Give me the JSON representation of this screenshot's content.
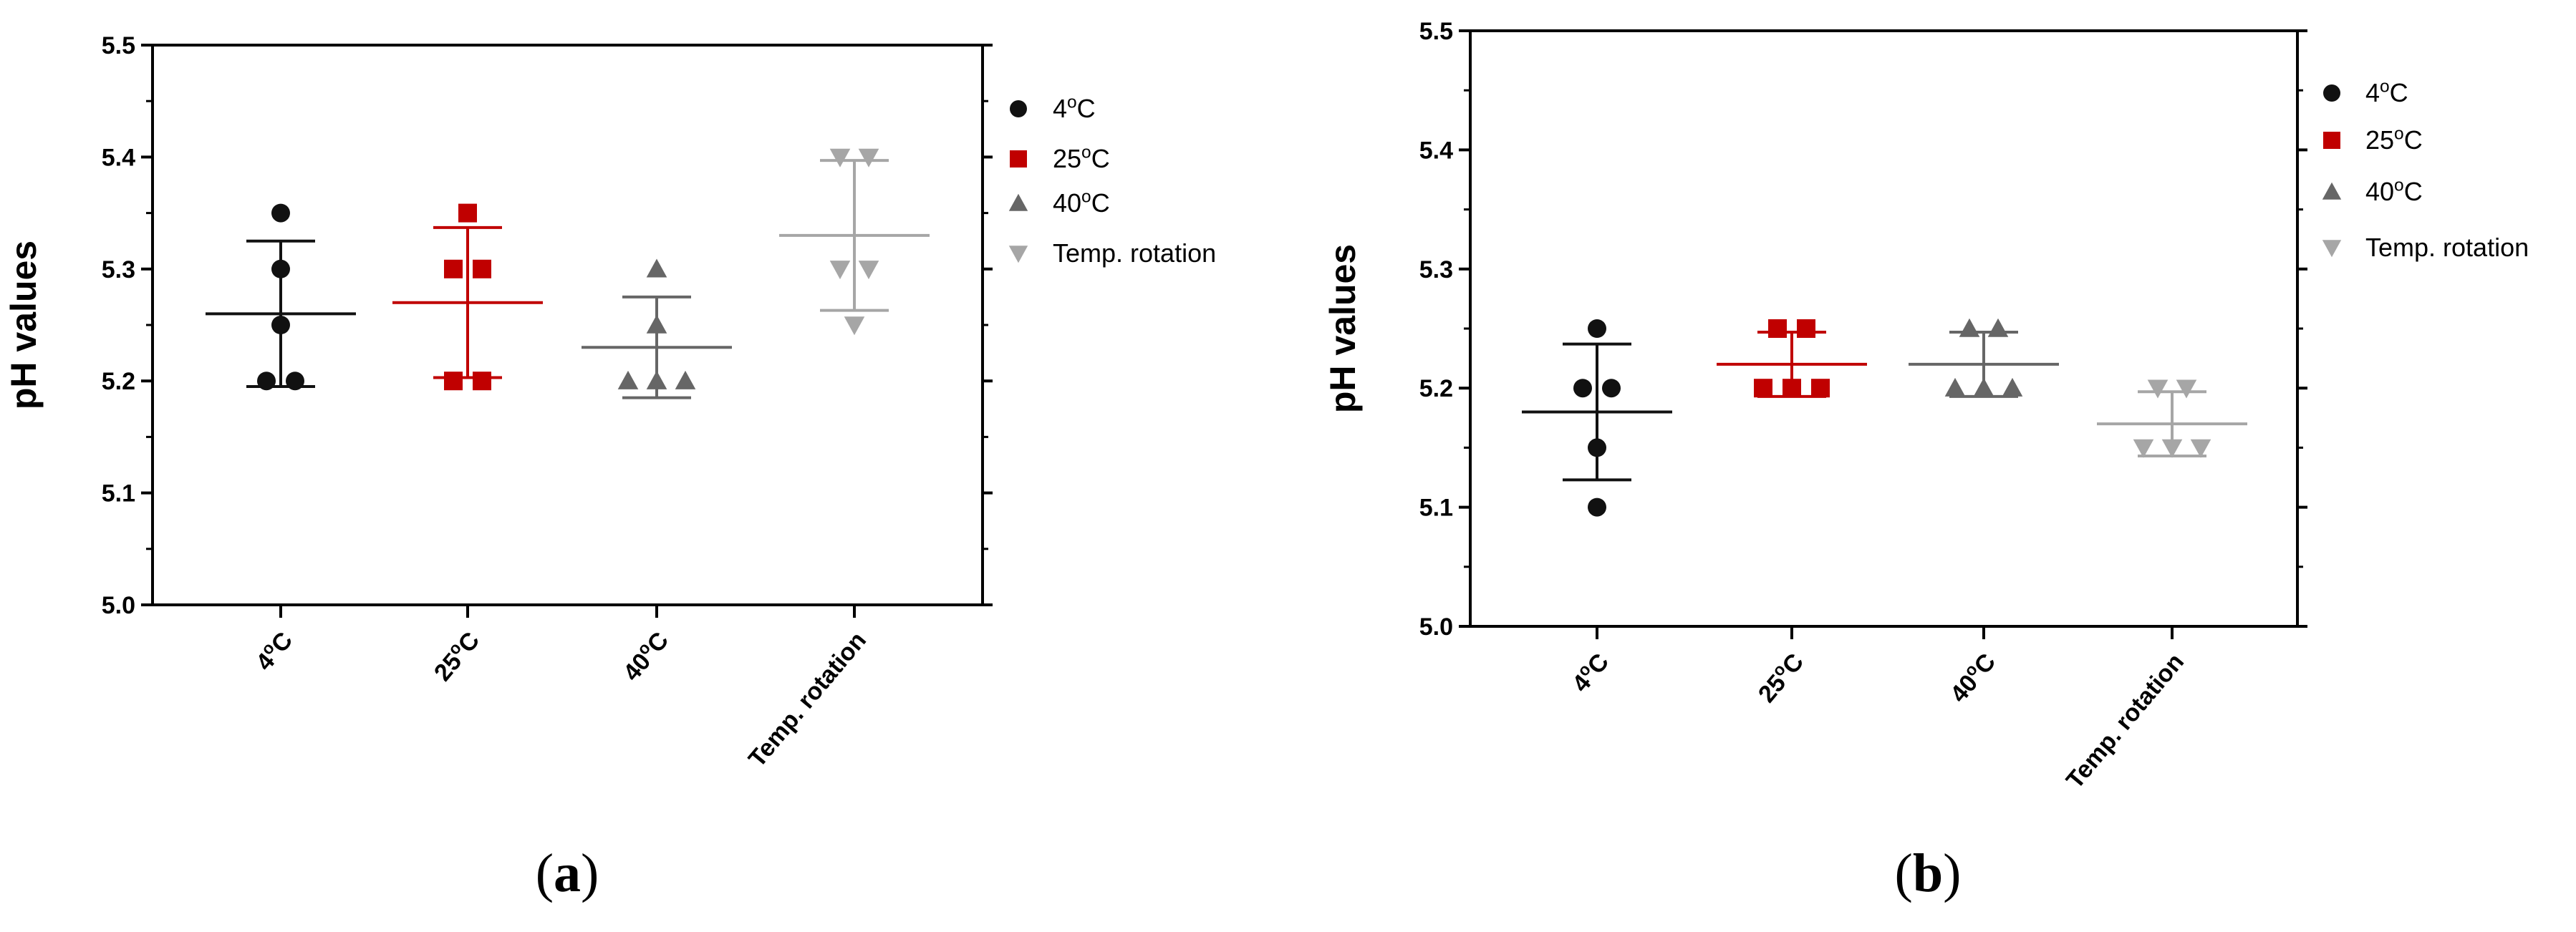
{
  "chart_data": [
    {
      "type": "scatter",
      "panel_label": "(a)",
      "ylabel": "pH values",
      "ylim": [
        5.0,
        5.5
      ],
      "yticks": [
        "5.0",
        "5.1",
        "5.2",
        "5.3",
        "5.4",
        "5.5"
      ],
      "categories": [
        "4°C",
        "25°C",
        "40°C",
        "Temp. rotation"
      ],
      "legend_placement": "right",
      "series": [
        {
          "name": "4°C",
          "marker": "circle",
          "color": "#111111",
          "points": [
            5.35,
            5.3,
            5.25,
            5.2,
            5.2
          ],
          "mean": 5.26,
          "sd": 0.065
        },
        {
          "name": "25°C",
          "marker": "square",
          "color": "#c00000",
          "points": [
            5.35,
            5.3,
            5.3,
            5.2,
            5.2
          ],
          "mean": 5.27,
          "sd": 0.067
        },
        {
          "name": "40°C",
          "marker": "triangle-up",
          "color": "#666666",
          "points": [
            5.3,
            5.25,
            5.2,
            5.2,
            5.2
          ],
          "mean": 5.23,
          "sd": 0.045
        },
        {
          "name": "Temp. rotation",
          "marker": "triangle-down",
          "color": "#a6a6a6",
          "points": [
            5.4,
            5.4,
            5.3,
            5.3,
            5.25
          ],
          "mean": 5.33,
          "sd": 0.067
        }
      ]
    },
    {
      "type": "scatter",
      "panel_label": "(b)",
      "ylabel": "pH values",
      "ylim": [
        5.0,
        5.5
      ],
      "yticks": [
        "5.0",
        "5.1",
        "5.2",
        "5.3",
        "5.4",
        "5.5"
      ],
      "categories": [
        "4°C",
        "25°C",
        "40°C",
        "Temp. rotation"
      ],
      "legend_placement": "right",
      "series": [
        {
          "name": "4°C",
          "marker": "circle",
          "color": "#111111",
          "points": [
            5.25,
            5.2,
            5.2,
            5.15,
            5.1
          ],
          "mean": 5.18,
          "sd": 0.057
        },
        {
          "name": "25°C",
          "marker": "square",
          "color": "#c00000",
          "points": [
            5.25,
            5.25,
            5.2,
            5.2,
            5.2
          ],
          "mean": 5.22,
          "sd": 0.027
        },
        {
          "name": "40°C",
          "marker": "triangle-up",
          "color": "#666666",
          "points": [
            5.25,
            5.25,
            5.2,
            5.2,
            5.2
          ],
          "mean": 5.22,
          "sd": 0.027
        },
        {
          "name": "Temp. rotation",
          "marker": "triangle-down",
          "color": "#a6a6a6",
          "points": [
            5.2,
            5.2,
            5.15,
            5.15,
            5.15
          ],
          "mean": 5.17,
          "sd": 0.027
        }
      ]
    }
  ]
}
